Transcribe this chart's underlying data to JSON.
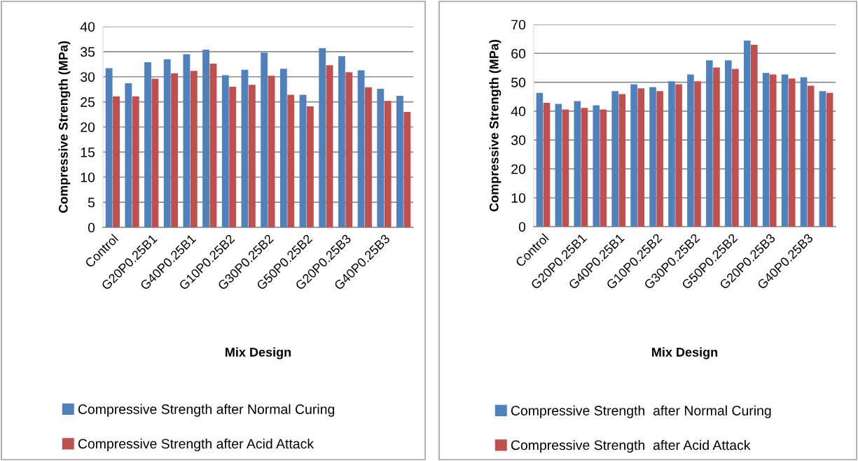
{
  "chart_data": [
    {
      "type": "bar",
      "xlabel": "Mix Design",
      "ylabel": "Compressive Strength (MPa)",
      "categories": [
        "Control",
        null,
        "G20P0.25B1",
        null,
        "G40P0.25B1",
        null,
        "G10P0.25B2",
        null,
        "G30P0.25B2",
        null,
        "G50P0.25B2",
        null,
        "G20P0.25B3",
        null,
        "G40P0.25B3",
        null
      ],
      "series": [
        {
          "name": "Compressive Strength after Normal Curing",
          "color": "#4f81bd",
          "values": [
            31.7,
            28.7,
            32.9,
            33.5,
            34.5,
            35.4,
            30.3,
            31.4,
            34.8,
            31.6,
            26.4,
            35.7,
            34.1,
            31.3,
            27.6,
            26.2
          ]
        },
        {
          "name": "Compressive Strength after Acid Attack",
          "color": "#c0504d",
          "values": [
            26.1,
            26.1,
            29.6,
            30.7,
            31.2,
            32.6,
            28.0,
            28.4,
            30.2,
            26.4,
            24.1,
            32.3,
            30.9,
            27.9,
            25.2,
            23.0
          ]
        }
      ],
      "ylim": [
        0,
        40
      ],
      "yticks": [
        0,
        5,
        10,
        15,
        20,
        25,
        30,
        35,
        40
      ],
      "grid": "y",
      "legend": "bottom"
    },
    {
      "type": "bar",
      "xlabel": "Mix Design",
      "ylabel": "Compressive Strength (MPa)",
      "categories": [
        "Control",
        null,
        "G20P0.25B1",
        null,
        "G40P0.25B1",
        null,
        "G10P0.25B2",
        null,
        "G30P0.25B2",
        null,
        "G50P0.25B2",
        null,
        "G20P0.25B3",
        null,
        "G40P0.25B3",
        null
      ],
      "series": [
        {
          "name": "Compressive Strength  after Normal Curing",
          "color": "#4f81bd",
          "values": [
            46.3,
            42.5,
            43.5,
            42.0,
            46.9,
            49.3,
            48.3,
            50.3,
            52.7,
            57.6,
            57.6,
            64.4,
            53.2,
            52.7,
            51.7,
            46.9
          ]
        },
        {
          "name": "Compressive Strength  after Acid Attack",
          "color": "#c0504d",
          "values": [
            42.9,
            40.6,
            41.1,
            40.6,
            45.9,
            47.9,
            46.9,
            49.3,
            50.3,
            55.1,
            54.6,
            63.0,
            52.7,
            51.3,
            48.8,
            46.3
          ]
        }
      ],
      "ylim": [
        0,
        70
      ],
      "yticks": [
        0,
        10,
        20,
        30,
        40,
        50,
        60,
        70
      ],
      "grid": "y",
      "legend": "bottom"
    }
  ]
}
